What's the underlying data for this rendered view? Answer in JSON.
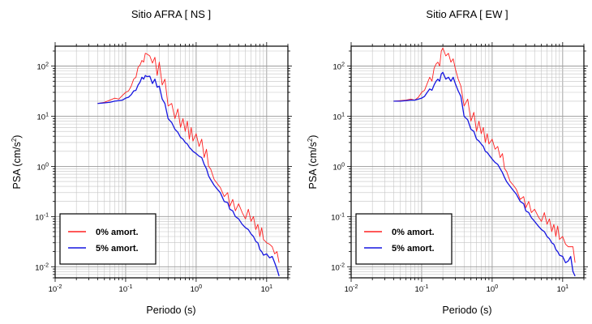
{
  "chart_data": [
    {
      "type": "line",
      "title": "Sitio AFRA [ NS ]",
      "xlabel": "Periodo (s)",
      "ylabel": "PSA (cm/s",
      "ylabel_sup": "2",
      "ylabel_tail": ")",
      "xscale": "log",
      "yscale": "log",
      "xlim": [
        0.01,
        20
      ],
      "ylim": [
        0.006,
        250
      ],
      "grid": true,
      "legend_placement": "bottom-left",
      "x_ticks": [
        {
          "base": "10",
          "exp": "-2"
        },
        {
          "base": "10",
          "exp": "-1"
        },
        {
          "base": "10",
          "exp": "0"
        },
        {
          "base": "10",
          "exp": "1"
        }
      ],
      "y_ticks": [
        {
          "base": "10",
          "exp": "-2"
        },
        {
          "base": "10",
          "exp": "-1"
        },
        {
          "base": "10",
          "exp": "0"
        },
        {
          "base": "10",
          "exp": "1"
        },
        {
          "base": "10",
          "exp": "2"
        }
      ],
      "series": [
        {
          "name": "0% amort.",
          "color": "#ff2020",
          "x": [
            0.04,
            0.05,
            0.06,
            0.07,
            0.08,
            0.09,
            0.1,
            0.11,
            0.12,
            0.13,
            0.14,
            0.15,
            0.16,
            0.17,
            0.18,
            0.19,
            0.2,
            0.22,
            0.24,
            0.26,
            0.28,
            0.3,
            0.33,
            0.36,
            0.4,
            0.45,
            0.5,
            0.55,
            0.6,
            0.65,
            0.7,
            0.75,
            0.8,
            0.85,
            0.9,
            1.0,
            1.1,
            1.2,
            1.3,
            1.4,
            1.5,
            1.6,
            1.8,
            2.0,
            2.2,
            2.5,
            2.8,
            3.0,
            3.3,
            3.6,
            4.0,
            4.5,
            5.0,
            5.5,
            6.0,
            6.5,
            7.0,
            7.5,
            8.0,
            8.5,
            9.0,
            10.0,
            11.0,
            12.0,
            13.0,
            14.0,
            15.0
          ],
          "values": [
            18,
            19,
            21,
            23,
            22,
            26,
            30,
            32,
            40,
            55,
            60,
            95,
            105,
            130,
            120,
            180,
            175,
            160,
            115,
            150,
            65,
            120,
            42,
            55,
            16,
            18,
            9,
            14,
            6,
            9,
            5,
            8,
            3.5,
            6,
            3.2,
            4.5,
            2.5,
            3.5,
            1.5,
            2.2,
            1.0,
            0.9,
            0.55,
            0.45,
            0.38,
            0.25,
            0.3,
            0.16,
            0.22,
            0.13,
            0.18,
            0.12,
            0.09,
            0.14,
            0.08,
            0.1,
            0.055,
            0.07,
            0.04,
            0.06,
            0.035,
            0.03,
            0.028,
            0.025,
            0.018,
            0.02,
            0.012
          ]
        },
        {
          "name": "5% amort.",
          "color": "#1515e0",
          "x": [
            0.04,
            0.05,
            0.06,
            0.07,
            0.08,
            0.09,
            0.1,
            0.11,
            0.12,
            0.13,
            0.14,
            0.15,
            0.16,
            0.17,
            0.18,
            0.19,
            0.2,
            0.22,
            0.24,
            0.26,
            0.28,
            0.3,
            0.33,
            0.36,
            0.4,
            0.45,
            0.5,
            0.55,
            0.6,
            0.65,
            0.7,
            0.75,
            0.8,
            0.85,
            0.9,
            1.0,
            1.1,
            1.2,
            1.3,
            1.4,
            1.5,
            1.6,
            1.8,
            2.0,
            2.2,
            2.5,
            2.8,
            3.0,
            3.3,
            3.6,
            4.0,
            4.5,
            5.0,
            5.5,
            6.0,
            6.5,
            7.0,
            7.5,
            8.0,
            8.5,
            9.0,
            10.0,
            11.0,
            12.0,
            13.0,
            14.0,
            15.0
          ],
          "values": [
            18,
            18.5,
            19,
            20,
            20.5,
            21,
            23,
            24,
            27,
            32,
            33,
            42,
            48,
            60,
            55,
            65,
            62,
            63,
            45,
            55,
            38,
            40,
            22,
            18,
            9,
            7.5,
            5.5,
            4.8,
            3.8,
            3.5,
            3.0,
            2.8,
            2.4,
            2.2,
            2.0,
            1.8,
            1.6,
            1.5,
            1.1,
            0.9,
            0.65,
            0.55,
            0.42,
            0.35,
            0.3,
            0.2,
            0.19,
            0.14,
            0.13,
            0.1,
            0.09,
            0.07,
            0.06,
            0.055,
            0.045,
            0.04,
            0.032,
            0.03,
            0.022,
            0.02,
            0.017,
            0.018,
            0.015,
            0.016,
            0.012,
            0.009,
            0.0065
          ]
        }
      ]
    },
    {
      "type": "line",
      "title": "Sitio AFRA [ EW ]",
      "xlabel": "Periodo (s)",
      "ylabel": "PSA (cm/s",
      "ylabel_sup": "2",
      "ylabel_tail": ")",
      "xscale": "log",
      "yscale": "log",
      "xlim": [
        0.01,
        20
      ],
      "ylim": [
        0.006,
        250
      ],
      "grid": true,
      "legend_placement": "bottom-left",
      "x_ticks": [
        {
          "base": "10",
          "exp": "-2"
        },
        {
          "base": "10",
          "exp": "-1"
        },
        {
          "base": "10",
          "exp": "0"
        },
        {
          "base": "10",
          "exp": "1"
        }
      ],
      "y_ticks": [
        {
          "base": "10",
          "exp": "-2"
        },
        {
          "base": "10",
          "exp": "-1"
        },
        {
          "base": "10",
          "exp": "0"
        },
        {
          "base": "10",
          "exp": "1"
        },
        {
          "base": "10",
          "exp": "2"
        }
      ],
      "series": [
        {
          "name": "0% amort.",
          "color": "#ff2020",
          "x": [
            0.04,
            0.05,
            0.06,
            0.07,
            0.08,
            0.09,
            0.1,
            0.11,
            0.12,
            0.13,
            0.14,
            0.15,
            0.16,
            0.17,
            0.18,
            0.19,
            0.2,
            0.22,
            0.24,
            0.26,
            0.28,
            0.3,
            0.33,
            0.36,
            0.4,
            0.45,
            0.5,
            0.55,
            0.6,
            0.65,
            0.7,
            0.75,
            0.8,
            0.85,
            0.9,
            1.0,
            1.1,
            1.2,
            1.3,
            1.4,
            1.5,
            1.6,
            1.8,
            2.0,
            2.2,
            2.5,
            2.8,
            3.0,
            3.3,
            3.6,
            4.0,
            4.5,
            5.0,
            5.5,
            6.0,
            6.5,
            7.0,
            7.5,
            8.0,
            8.5,
            9.0,
            10.0,
            11.0,
            12.0,
            13.0,
            14.0,
            15.0
          ],
          "values": [
            20,
            20.5,
            21,
            22,
            21,
            24,
            30,
            33,
            45,
            60,
            50,
            90,
            110,
            120,
            100,
            200,
            230,
            160,
            180,
            120,
            140,
            90,
            55,
            40,
            16,
            22,
            8,
            12,
            5,
            8,
            4.5,
            6,
            3,
            4.5,
            2.8,
            3.5,
            2.2,
            2.5,
            1.5,
            1.8,
            0.9,
            0.8,
            0.5,
            0.42,
            0.35,
            0.22,
            0.25,
            0.15,
            0.2,
            0.12,
            0.14,
            0.1,
            0.08,
            0.12,
            0.07,
            0.09,
            0.05,
            0.07,
            0.04,
            0.065,
            0.035,
            0.04,
            0.028,
            0.025,
            0.025,
            0.025,
            0.012
          ]
        },
        {
          "name": "5% amort.",
          "color": "#1515e0",
          "x": [
            0.04,
            0.05,
            0.06,
            0.07,
            0.08,
            0.09,
            0.1,
            0.11,
            0.12,
            0.13,
            0.14,
            0.15,
            0.16,
            0.17,
            0.18,
            0.19,
            0.2,
            0.22,
            0.24,
            0.26,
            0.28,
            0.3,
            0.33,
            0.36,
            0.4,
            0.45,
            0.5,
            0.55,
            0.6,
            0.65,
            0.7,
            0.75,
            0.8,
            0.85,
            0.9,
            1.0,
            1.1,
            1.2,
            1.3,
            1.4,
            1.5,
            1.6,
            1.8,
            2.0,
            2.2,
            2.5,
            2.8,
            3.0,
            3.3,
            3.6,
            4.0,
            4.5,
            5.0,
            5.5,
            6.0,
            6.5,
            7.0,
            7.5,
            8.0,
            8.5,
            9.0,
            10.0,
            11.0,
            12.0,
            13.0,
            14.0,
            15.0
          ],
          "values": [
            20,
            20,
            20.5,
            21,
            21,
            22,
            23,
            25,
            30,
            35,
            33,
            42,
            50,
            55,
            50,
            70,
            75,
            55,
            60,
            50,
            60,
            45,
            32,
            25,
            10,
            8.5,
            5.5,
            5,
            3.5,
            3.2,
            2.8,
            2.5,
            2.0,
            1.9,
            1.7,
            1.4,
            1.2,
            1.1,
            0.9,
            0.75,
            0.6,
            0.5,
            0.4,
            0.33,
            0.28,
            0.2,
            0.18,
            0.13,
            0.12,
            0.095,
            0.08,
            0.065,
            0.055,
            0.05,
            0.04,
            0.036,
            0.03,
            0.028,
            0.022,
            0.02,
            0.017,
            0.016,
            0.012,
            0.013,
            0.016,
            0.008,
            0.0065
          ]
        }
      ]
    }
  ]
}
